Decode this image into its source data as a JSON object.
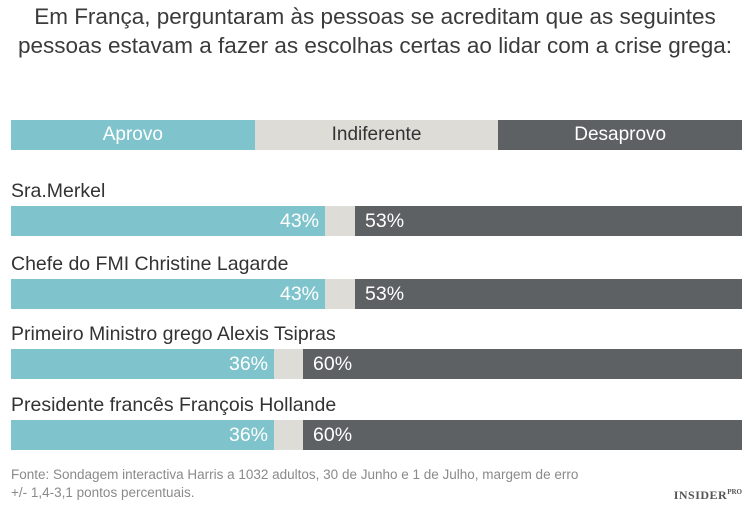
{
  "title_line1": "Em França, perguntaram às pessoas se acreditam que as seguintes",
  "title_line2": "pessoas estavam a fazer as escolhas certas ao lidar com a crise grega:",
  "colors": {
    "approve": "#7fc4cc",
    "indifferent": "#dddcd7",
    "disapprove": "#5d6163",
    "approve_text": "#ffffff",
    "indifferent_text": "#333333",
    "disapprove_text": "#ffffff"
  },
  "legend": {
    "approve": "Aprovo",
    "indifferent": "Indiferente",
    "disapprove": "Desaprovo"
  },
  "chart_data": {
    "type": "bar",
    "stacked": true,
    "orientation": "horizontal",
    "categories": [
      "Sra.Merkel",
      "Chefe do FMI Christine Lagarde",
      "Primeiro Ministro grego Alexis Tsipras",
      "Presidente francês François Hollande"
    ],
    "series": [
      {
        "name": "Aprovo",
        "values": [
          43,
          43,
          36,
          36
        ]
      },
      {
        "name": "Indiferente",
        "values": [
          4,
          4,
          4,
          4
        ]
      },
      {
        "name": "Desaprovo",
        "values": [
          53,
          53,
          60,
          60
        ]
      }
    ],
    "value_labels": {
      "approve": [
        "43%",
        "43%",
        "36%",
        "36%"
      ],
      "disapprove": [
        "53%",
        "53%",
        "60%",
        "60%"
      ]
    },
    "xlim": [
      0,
      100
    ],
    "legend_position": "top"
  },
  "footnote_line1": "Fonte: Sondagem interactiva Harris a 1032 adultos, 30 de Junho e 1 de Julho, margem de erro",
  "footnote_line2": "+/- 1,4-3,1 pontos percentuais.",
  "logo_text": "INSIDER",
  "logo_sup": "PRO"
}
